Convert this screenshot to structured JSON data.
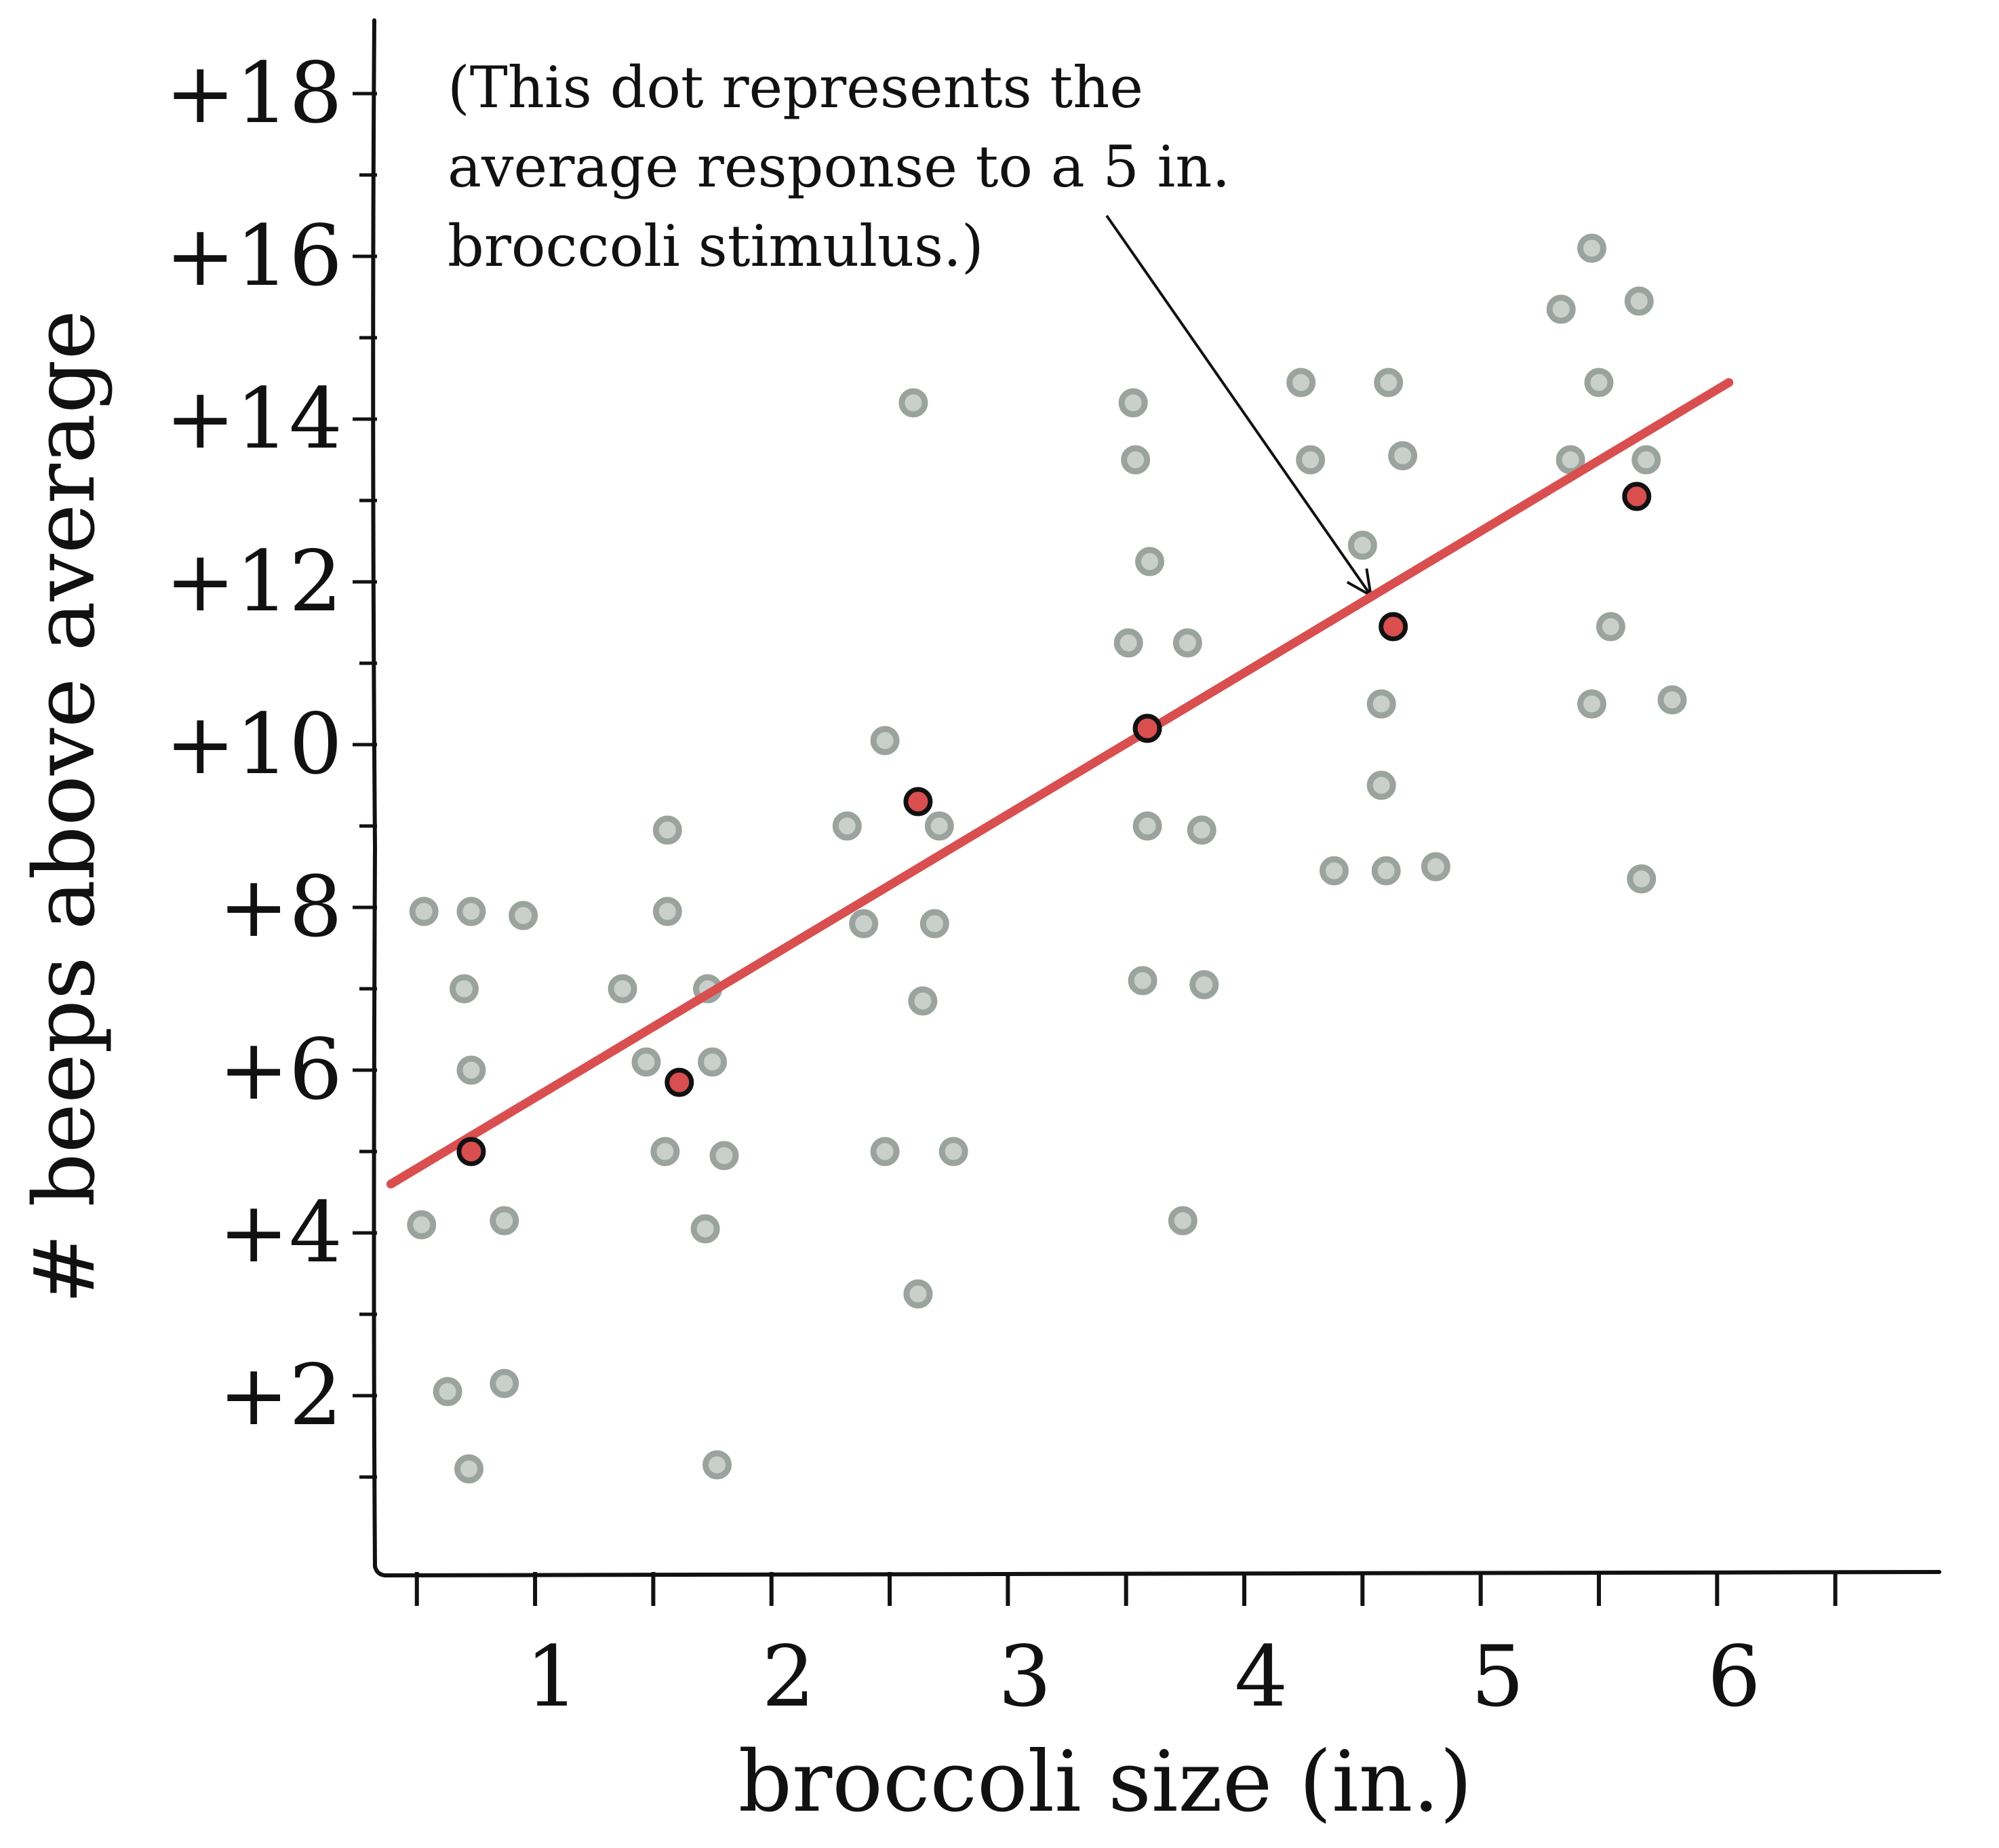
{
  "chart_data": {
    "type": "scatter",
    "xlabel": "broccoli size (in.)",
    "ylabel": "# beeps above average",
    "x_ticks": [
      "1",
      "2",
      "3",
      "4",
      "5",
      "6"
    ],
    "y_ticks": [
      "+2",
      "+4",
      "+6",
      "+8",
      "+10",
      "+12",
      "+14",
      "+16",
      "+18"
    ],
    "xlim": [
      0.32,
      6.94
    ],
    "ylim": [
      -0.2,
      18.9
    ],
    "grid": false,
    "annotation": {
      "lines": [
        "(This dot represents the",
        "average response to a 5 in.",
        "broccoli stimulus.)"
      ],
      "target": {
        "x": 4.65,
        "y": 11.5
      }
    },
    "series": [
      {
        "kind": "individual responses",
        "color": "#9aa39d",
        "points": [
          {
            "x": 0.53,
            "y": 7.95
          },
          {
            "x": 0.73,
            "y": 7.95
          },
          {
            "x": 0.95,
            "y": 7.9
          },
          {
            "x": 0.7,
            "y": 7.0
          },
          {
            "x": 0.73,
            "y": 6.0
          },
          {
            "x": 0.52,
            "y": 4.1
          },
          {
            "x": 0.87,
            "y": 4.15
          },
          {
            "x": 0.63,
            "y": 2.05
          },
          {
            "x": 0.87,
            "y": 2.15
          },
          {
            "x": 0.72,
            "y": 1.1
          },
          {
            "x": 1.56,
            "y": 8.95
          },
          {
            "x": 1.56,
            "y": 7.95
          },
          {
            "x": 1.37,
            "y": 7.0
          },
          {
            "x": 1.73,
            "y": 7.0
          },
          {
            "x": 1.47,
            "y": 6.1
          },
          {
            "x": 1.75,
            "y": 6.1
          },
          {
            "x": 1.55,
            "y": 5.0
          },
          {
            "x": 1.8,
            "y": 4.95
          },
          {
            "x": 1.72,
            "y": 4.05
          },
          {
            "x": 1.77,
            "y": 1.15
          },
          {
            "x": 2.6,
            "y": 14.2
          },
          {
            "x": 2.48,
            "y": 10.05
          },
          {
            "x": 2.32,
            "y": 9.0
          },
          {
            "x": 2.71,
            "y": 9.0
          },
          {
            "x": 2.39,
            "y": 7.8
          },
          {
            "x": 2.69,
            "y": 7.8
          },
          {
            "x": 2.64,
            "y": 6.85
          },
          {
            "x": 2.48,
            "y": 5.0
          },
          {
            "x": 2.77,
            "y": 5.0
          },
          {
            "x": 2.62,
            "y": 3.25
          },
          {
            "x": 3.53,
            "y": 14.2
          },
          {
            "x": 3.54,
            "y": 13.5
          },
          {
            "x": 3.6,
            "y": 12.25
          },
          {
            "x": 3.51,
            "y": 11.25
          },
          {
            "x": 3.76,
            "y": 11.25
          },
          {
            "x": 3.59,
            "y": 9.0
          },
          {
            "x": 3.82,
            "y": 8.95
          },
          {
            "x": 3.57,
            "y": 7.1
          },
          {
            "x": 3.83,
            "y": 7.05
          },
          {
            "x": 3.74,
            "y": 4.15
          },
          {
            "x": 4.24,
            "y": 14.45
          },
          {
            "x": 4.61,
            "y": 14.45
          },
          {
            "x": 4.28,
            "y": 13.5
          },
          {
            "x": 4.67,
            "y": 13.55
          },
          {
            "x": 4.5,
            "y": 12.45
          },
          {
            "x": 4.58,
            "y": 10.5
          },
          {
            "x": 4.58,
            "y": 9.5
          },
          {
            "x": 4.38,
            "y": 8.45
          },
          {
            "x": 4.6,
            "y": 8.45
          },
          {
            "x": 4.81,
            "y": 8.5
          },
          {
            "x": 5.47,
            "y": 16.1
          },
          {
            "x": 5.34,
            "y": 15.35
          },
          {
            "x": 5.67,
            "y": 15.45
          },
          {
            "x": 5.5,
            "y": 14.45
          },
          {
            "x": 5.38,
            "y": 13.5
          },
          {
            "x": 5.7,
            "y": 13.5
          },
          {
            "x": 5.55,
            "y": 11.45
          },
          {
            "x": 5.47,
            "y": 10.5
          },
          {
            "x": 5.81,
            "y": 10.55
          },
          {
            "x": 5.68,
            "y": 8.35
          }
        ]
      },
      {
        "kind": "average response",
        "color": "#d94f50",
        "points": [
          {
            "x": 0.73,
            "y": 5.0
          },
          {
            "x": 1.61,
            "y": 5.85
          },
          {
            "x": 2.62,
            "y": 9.3
          },
          {
            "x": 3.59,
            "y": 10.2
          },
          {
            "x": 4.63,
            "y": 11.45
          },
          {
            "x": 5.66,
            "y": 13.05
          }
        ]
      }
    ],
    "trend_line": {
      "color": "#d94f50",
      "from": {
        "x": 0.39,
        "y": 4.6
      },
      "to": {
        "x": 6.05,
        "y": 14.45
      }
    }
  }
}
